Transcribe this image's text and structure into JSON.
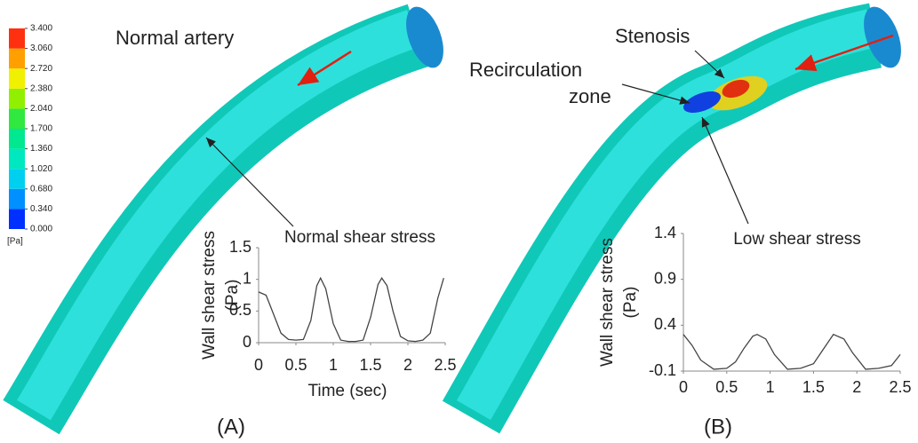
{
  "annotations": {
    "normal_artery": "Normal artery",
    "stenosis": "Stenosis",
    "recirculation": [
      "Recirculation",
      "zone"
    ],
    "panel_a": "(A)",
    "panel_b": "(B)"
  },
  "colorbar": {
    "unit": "[Pa]",
    "lim": [
      0,
      3.4
    ],
    "ticks": [
      {
        "value": 0,
        "label": "0.000"
      },
      {
        "value": 0.34,
        "label": "0.340"
      },
      {
        "value": 0.68,
        "label": "0.680"
      },
      {
        "value": 1.02,
        "label": "1.020"
      },
      {
        "value": 1.36,
        "label": "1.360"
      },
      {
        "value": 1.7,
        "label": "1.700"
      },
      {
        "value": 2.04,
        "label": "2.040"
      },
      {
        "value": 2.38,
        "label": "2.380"
      },
      {
        "value": 2.72,
        "label": "2.720"
      },
      {
        "value": 3.06,
        "label": "3.060"
      },
      {
        "value": 3.4,
        "label": "3.400"
      }
    ],
    "colors": [
      "#0030ff",
      "#0090ff",
      "#00d0f0",
      "#00e8c0",
      "#00e890",
      "#30e840",
      "#90f000",
      "#f0f000",
      "#ffa000",
      "#ff3010"
    ]
  },
  "chart_data": [
    {
      "type": "line",
      "title": "Normal shear stress",
      "xlabel": "Time (sec)",
      "ylabel": [
        "Wall shear stress",
        "(Pa)"
      ],
      "x": [
        0,
        0.1,
        0.2,
        0.3,
        0.4,
        0.5,
        0.6,
        0.7,
        0.78,
        0.83,
        0.9,
        1.0,
        1.1,
        1.2,
        1.3,
        1.4,
        1.5,
        1.6,
        1.65,
        1.72,
        1.8,
        1.9,
        2.0,
        2.1,
        2.2,
        2.3,
        2.4,
        2.48
      ],
      "series": [
        {
          "name": "Wall shear stress",
          "color": "#444444",
          "values": [
            0.8,
            0.75,
            0.45,
            0.15,
            0.05,
            0.04,
            0.05,
            0.35,
            0.9,
            1.02,
            0.85,
            0.3,
            0.04,
            0.02,
            0.02,
            0.04,
            0.4,
            0.92,
            1.02,
            0.9,
            0.5,
            0.1,
            0.03,
            0.02,
            0.04,
            0.15,
            0.7,
            1.02
          ]
        }
      ],
      "xlim": [
        0,
        2.5
      ],
      "ylim": [
        0,
        1.5
      ],
      "xticks": [
        0,
        0.5,
        1,
        1.5,
        2,
        2.5
      ],
      "yticks": [
        0,
        0.5,
        1,
        1.5
      ]
    },
    {
      "type": "line",
      "title": "Low shear stress",
      "ylabel": [
        "Wall shear stress",
        "(Pa)"
      ],
      "x": [
        0,
        0.1,
        0.2,
        0.35,
        0.5,
        0.6,
        0.7,
        0.8,
        0.85,
        0.95,
        1.05,
        1.2,
        1.35,
        1.5,
        1.6,
        1.73,
        1.85,
        1.95,
        2.1,
        2.25,
        2.4,
        2.5
      ],
      "series": [
        {
          "name": "Wall shear stress",
          "color": "#444444",
          "values": [
            0.3,
            0.18,
            0.02,
            -0.08,
            -0.07,
            0.0,
            0.15,
            0.28,
            0.3,
            0.25,
            0.08,
            -0.08,
            -0.07,
            -0.02,
            0.12,
            0.3,
            0.25,
            0.1,
            -0.08,
            -0.07,
            -0.04,
            0.08
          ]
        }
      ],
      "xlim": [
        0,
        2.5
      ],
      "ylim": [
        -0.1,
        1.4
      ],
      "xticks": [
        0,
        0.5,
        1,
        1.5,
        2,
        2.5
      ],
      "yticks": [
        -0.1,
        0.4,
        0.9,
        1.4
      ]
    }
  ]
}
